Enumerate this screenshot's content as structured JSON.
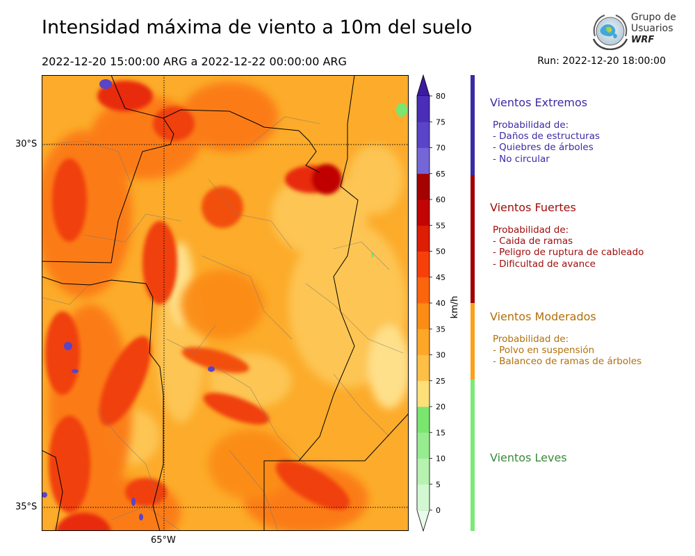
{
  "header": {
    "title": "Intensidad máxima de viento a 10m del suelo",
    "period": "2022-12-20 15:00:00 ARG  a  2022-12-22 00:00:00 ARG",
    "run": "Run: 2022-12-20 18:00:00"
  },
  "logo": {
    "line1": "Grupo de",
    "line2": "Usuarios",
    "line3": "WRF"
  },
  "map": {
    "lat_labels": [
      "30°S",
      "35°S"
    ],
    "lon_labels": [
      "65°W"
    ]
  },
  "colorbar": {
    "unit": "km/h",
    "ticks": [
      "0",
      "5",
      "10",
      "15",
      "20",
      "25",
      "30",
      "35",
      "40",
      "45",
      "50",
      "55",
      "60",
      "65",
      "70",
      "75",
      "80"
    ],
    "colors": [
      "#e9fce9",
      "#d1f8d1",
      "#b6f2b0",
      "#98ec90",
      "#7ae670",
      "#fde07a",
      "#fdbf46",
      "#fca728",
      "#fb8c15",
      "#fb650d",
      "#f73f09",
      "#de1d05",
      "#c20404",
      "#a50202",
      "#7466d6",
      "#5a44c8",
      "#4a2db8",
      "#3a1c9e"
    ]
  },
  "legend": {
    "categories": [
      {
        "title": "Vientos Extremos",
        "color": "#3a2aa6",
        "bar_color": "#3a2aa6",
        "desc": [
          "Probabilidad de:",
          "- Daños de estructuras",
          "- Quiebres de árboles",
          "- No circular"
        ]
      },
      {
        "title": "Vientos Fuertes",
        "color": "#9e0a0a",
        "bar_color": "#a00202",
        "desc": [
          "Probabilidad de:",
          "- Caida de ramas",
          "- Peligro de ruptura de cableado",
          "- Dificultad de avance"
        ]
      },
      {
        "title": "Vientos Moderados",
        "color": "#b36f0a",
        "bar_color": "#fca11a",
        "desc": [
          "Probabilidad de:",
          "- Polvo en suspensión",
          "- Balanceo de ramas de árboles"
        ]
      },
      {
        "title": "Vientos Leves",
        "color": "#3a8a3a",
        "bar_color": "#7ee87a",
        "desc": []
      }
    ]
  }
}
